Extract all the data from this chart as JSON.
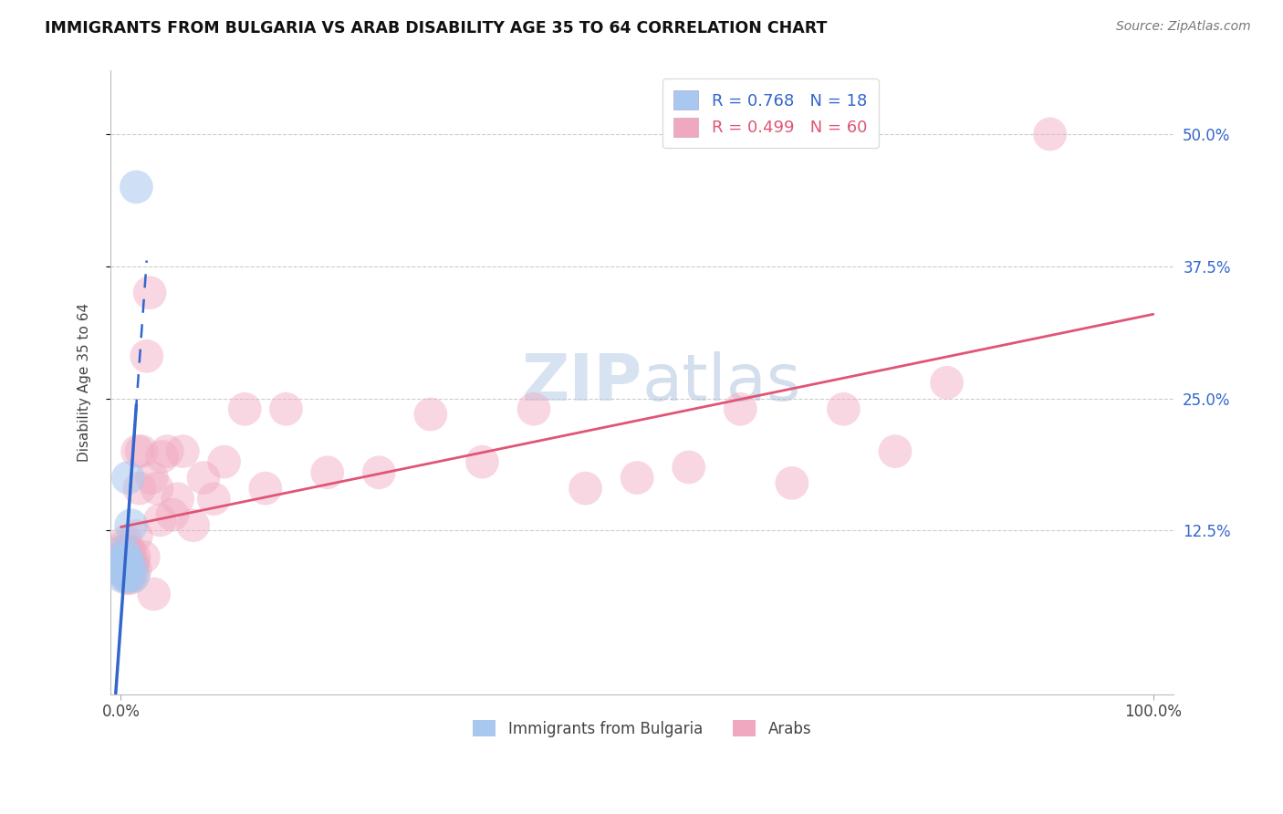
{
  "title": "IMMIGRANTS FROM BULGARIA VS ARAB DISABILITY AGE 35 TO 64 CORRELATION CHART",
  "source": "Source: ZipAtlas.com",
  "ylabel": "Disability Age 35 to 64",
  "ytick_vals": [
    0.125,
    0.25,
    0.375,
    0.5
  ],
  "legend1_label": "R = 0.768   N = 18",
  "legend2_label": "R = 0.499   N = 60",
  "legend_bottom1": "Immigrants from Bulgaria",
  "legend_bottom2": "Arabs",
  "bulgaria_color": "#a8c8f0",
  "arab_color": "#f0a8c0",
  "bulgaria_line_color": "#3366cc",
  "arab_line_color": "#e05575",
  "bulgaria_x": [
    0.001,
    0.001,
    0.002,
    0.002,
    0.003,
    0.003,
    0.004,
    0.004,
    0.005,
    0.005,
    0.006,
    0.006,
    0.007,
    0.008,
    0.009,
    0.01,
    0.012,
    0.015
  ],
  "bulgaria_y": [
    0.082,
    0.092,
    0.095,
    0.105,
    0.088,
    0.098,
    0.085,
    0.095,
    0.088,
    0.1,
    0.082,
    0.092,
    0.175,
    0.082,
    0.092,
    0.13,
    0.082,
    0.45
  ],
  "arab_x": [
    0.001,
    0.001,
    0.002,
    0.002,
    0.003,
    0.003,
    0.004,
    0.004,
    0.005,
    0.005,
    0.006,
    0.006,
    0.007,
    0.007,
    0.008,
    0.008,
    0.009,
    0.009,
    0.01,
    0.011,
    0.012,
    0.013,
    0.014,
    0.015,
    0.016,
    0.018,
    0.02,
    0.022,
    0.025,
    0.028,
    0.03,
    0.032,
    0.035,
    0.038,
    0.04,
    0.045,
    0.05,
    0.055,
    0.06,
    0.07,
    0.08,
    0.09,
    0.1,
    0.12,
    0.14,
    0.16,
    0.2,
    0.25,
    0.3,
    0.35,
    0.4,
    0.45,
    0.5,
    0.55,
    0.6,
    0.65,
    0.7,
    0.75,
    0.8,
    0.9
  ],
  "arab_y": [
    0.095,
    0.105,
    0.09,
    0.1,
    0.085,
    0.11,
    0.092,
    0.102,
    0.088,
    0.115,
    0.08,
    0.092,
    0.085,
    0.105,
    0.082,
    0.095,
    0.08,
    0.105,
    0.092,
    0.088,
    0.095,
    0.1,
    0.088,
    0.12,
    0.2,
    0.165,
    0.2,
    0.1,
    0.29,
    0.35,
    0.175,
    0.065,
    0.165,
    0.135,
    0.195,
    0.2,
    0.14,
    0.155,
    0.2,
    0.13,
    0.175,
    0.155,
    0.19,
    0.24,
    0.165,
    0.24,
    0.18,
    0.18,
    0.235,
    0.19,
    0.24,
    0.165,
    0.175,
    0.185,
    0.24,
    0.17,
    0.24,
    0.2,
    0.265,
    0.5
  ],
  "xlim": [
    -0.01,
    1.02
  ],
  "ylim": [
    -0.03,
    0.56
  ]
}
